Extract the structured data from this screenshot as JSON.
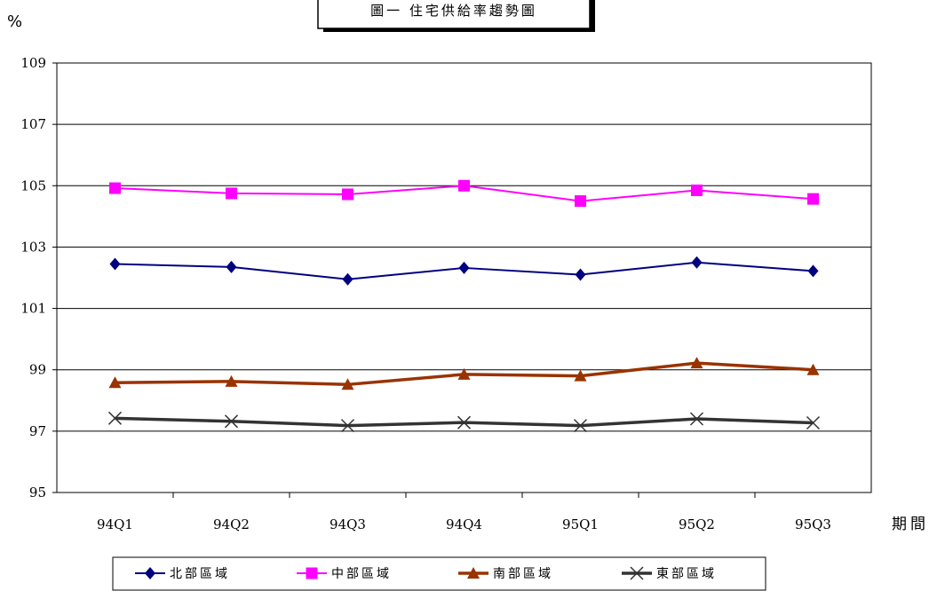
{
  "chart_data": {
    "type": "line",
    "title": "圖一  住宅供給率趨勢圖",
    "ylabel": "%",
    "xlabel": "期間",
    "categories": [
      "94Q1",
      "94Q2",
      "94Q3",
      "94Q4",
      "95Q1",
      "95Q2",
      "95Q3"
    ],
    "ylim": [
      95,
      109
    ],
    "yticks": [
      "95",
      "97",
      "99",
      "101",
      "103",
      "105",
      "107",
      "109"
    ],
    "grid": true,
    "legend_position": "bottom",
    "series": [
      {
        "name": "北部區域",
        "color": "#000080",
        "marker": "diamond",
        "values": [
          102.45,
          102.35,
          101.95,
          102.32,
          102.1,
          102.5,
          102.22
        ]
      },
      {
        "name": "中部區域",
        "color": "#ff00ff",
        "marker": "square",
        "values": [
          104.92,
          104.75,
          104.72,
          105.0,
          104.5,
          104.85,
          104.57
        ]
      },
      {
        "name": "南部區域",
        "color": "#993300",
        "marker": "triangle",
        "values": [
          98.58,
          98.62,
          98.52,
          98.85,
          98.8,
          99.22,
          99.0
        ]
      },
      {
        "name": "東部區域",
        "color": "#333333",
        "marker": "x",
        "values": [
          97.42,
          97.32,
          97.18,
          97.28,
          97.18,
          97.4,
          97.27
        ]
      }
    ]
  }
}
